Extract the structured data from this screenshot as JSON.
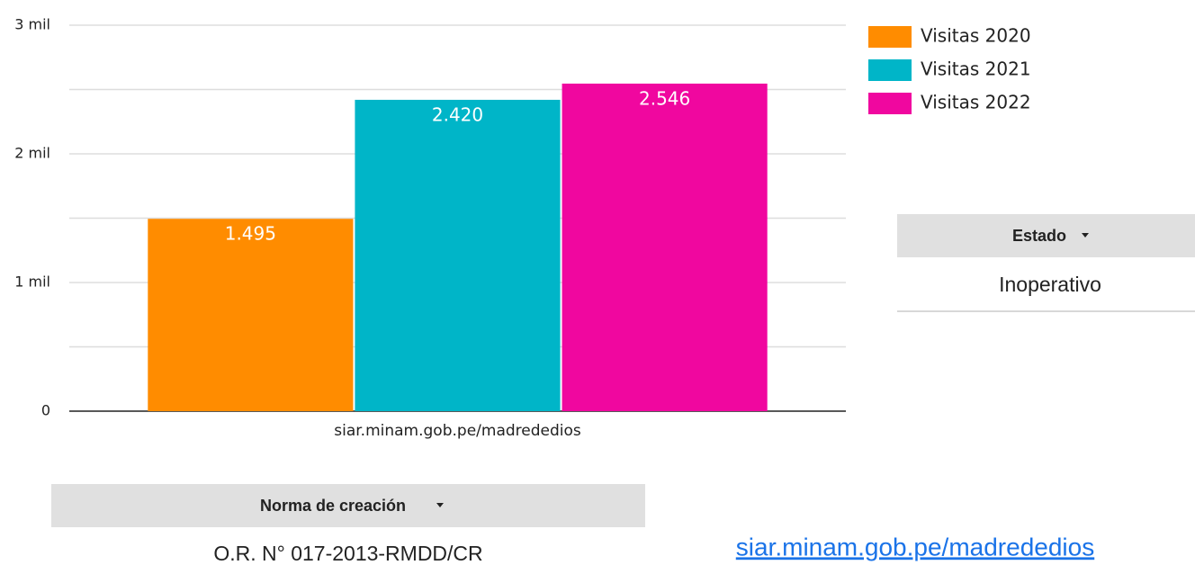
{
  "chart_data": {
    "type": "bar",
    "categories": [
      "siar.minam.gob.pe/madrededios"
    ],
    "series": [
      {
        "name": "Visitas 2020",
        "color": "#ff8c00",
        "values": [
          1495
        ],
        "value_labels": [
          "1.495"
        ]
      },
      {
        "name": "Visitas 2021",
        "color": "#00b5c8",
        "values": [
          2420
        ],
        "value_labels": [
          "2.420"
        ]
      },
      {
        "name": "Visitas 2022",
        "color": "#f0079f",
        "values": [
          2546
        ],
        "value_labels": [
          "2.546"
        ]
      }
    ],
    "ylim": [
      0,
      3000
    ],
    "yticks": [
      0,
      {
        "value": 1000,
        "label": "1 mil"
      },
      {
        "value": 2000,
        "label": "2 mil"
      },
      {
        "value": 3000,
        "label": "3 mil"
      }
    ],
    "minor_gridlines": [
      500,
      1500,
      2500
    ],
    "grid": true,
    "legend": "right"
  },
  "estado_table": {
    "header": "Estado",
    "value": "Inoperativo"
  },
  "norma_table": {
    "header": "Norma de creación",
    "value": "O.R. N° 017-2013-RMDD/CR"
  },
  "link": "siar.minam.gob.pe/madrededios"
}
